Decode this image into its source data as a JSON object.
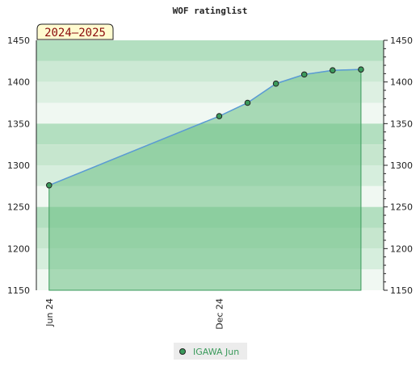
{
  "chart_data": {
    "type": "area",
    "title": "WOF ratinglist",
    "season_label": "2024–2025",
    "ylim": [
      1150,
      1450
    ],
    "y_ticks": [
      1150,
      1200,
      1250,
      1300,
      1350,
      1400,
      1450
    ],
    "x_ticks": [
      {
        "label": "Jun 24",
        "x": 0
      },
      {
        "label": "Dec 24",
        "x": 6
      }
    ],
    "xlim": [
      -0.45,
      11.8
    ],
    "grid": true,
    "legend_position": "bottom-center",
    "series": [
      {
        "name": "IGAWA Jun",
        "color": "#3a9a5b",
        "line_color": "#5b9bd5",
        "fill_color": "#6cbf84",
        "points": [
          {
            "x": 0,
            "y": 1276
          },
          {
            "x": 6,
            "y": 1359
          },
          {
            "x": 7,
            "y": 1375
          },
          {
            "x": 8,
            "y": 1398
          },
          {
            "x": 9,
            "y": 1409
          },
          {
            "x": 10,
            "y": 1414
          },
          {
            "x": 11,
            "y": 1415
          }
        ]
      }
    ]
  }
}
